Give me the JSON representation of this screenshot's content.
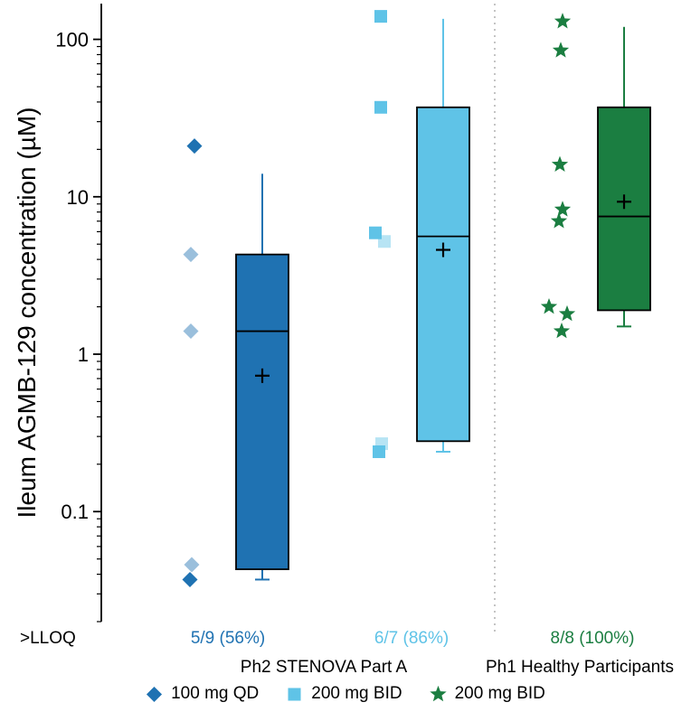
{
  "chart_data": {
    "type": "boxplot",
    "title": "",
    "ylabel": "Ileum AGMB-129 concentration (µM)",
    "y_scale": "log",
    "y_ticks": [
      "100",
      "10",
      "1",
      "0.1"
    ],
    "y_range": [
      0.02,
      160
    ],
    "grid": false,
    "lloq_label": ">LLOQ",
    "cohort_labels": [
      "Ph2 STENOVA Part A",
      "Ph1 Healthy Participants"
    ],
    "separator_color": "#b5b5b5",
    "groups": [
      {
        "label": "100 mg QD",
        "cohort": "Ph2 STENOVA Part A",
        "marker": "diamond",
        "color": "#1f72b2",
        "lloq": "5/9 (56%)",
        "points": [
          {
            "v": 21,
            "faded": false,
            "dx": 1
          },
          {
            "v": 4.3,
            "faded": true,
            "dx": -3
          },
          {
            "v": 1.4,
            "faded": true,
            "dx": -3
          },
          {
            "v": 0.046,
            "faded": true,
            "dx": -2
          },
          {
            "v": 0.037,
            "faded": false,
            "dx": -4
          }
        ],
        "box": {
          "q1": 0.043,
          "median": 1.4,
          "q3": 4.3,
          "whisker_low": 0.037,
          "whisker_high": 14,
          "mean": 0.73
        }
      },
      {
        "label": "200 mg BID",
        "cohort": "Ph2 STENOVA Part A",
        "marker": "square",
        "color": "#5fc3e7",
        "lloq": "6/7 (86%)",
        "points": [
          {
            "v": 140,
            "faded": false,
            "dx": 1
          },
          {
            "v": 37,
            "faded": false,
            "dx": 1
          },
          {
            "v": 5.9,
            "faded": false,
            "dx": -5
          },
          {
            "v": 5.2,
            "faded": true,
            "dx": 5
          },
          {
            "v": 0.27,
            "faded": true,
            "dx": 2
          },
          {
            "v": 0.24,
            "faded": false,
            "dx": -1
          }
        ],
        "box": {
          "q1": 0.28,
          "median": 5.6,
          "q3": 37,
          "whisker_low": 0.24,
          "whisker_high": 135,
          "mean": 4.6
        }
      },
      {
        "label": "200 mg BID",
        "cohort": "Ph1 Healthy Participants",
        "marker": "star",
        "color": "#1b7e41",
        "lloq": "8/8 (100%)",
        "points": [
          {
            "v": 130,
            "faded": false,
            "dx": 2
          },
          {
            "v": 85,
            "faded": false,
            "dx": 0
          },
          {
            "v": 16,
            "faded": false,
            "dx": -1
          },
          {
            "v": 8.3,
            "faded": false,
            "dx": 2
          },
          {
            "v": 7,
            "faded": false,
            "dx": -2
          },
          {
            "v": 2.0,
            "faded": false,
            "dx": -13
          },
          {
            "v": 1.8,
            "faded": false,
            "dx": 7
          },
          {
            "v": 1.4,
            "faded": false,
            "dx": 1
          }
        ],
        "box": {
          "q1": 1.9,
          "median": 7.5,
          "q3": 37,
          "whisker_low": 1.5,
          "whisker_high": 120,
          "mean": 9.3
        }
      }
    ],
    "legend": [
      {
        "label": "100 mg QD",
        "marker": "diamond",
        "color": "#1f72b2"
      },
      {
        "label": "200 mg BID",
        "marker": "square",
        "color": "#5fc3e7"
      },
      {
        "label": "200 mg BID",
        "marker": "star",
        "color": "#1b7e41"
      }
    ]
  }
}
